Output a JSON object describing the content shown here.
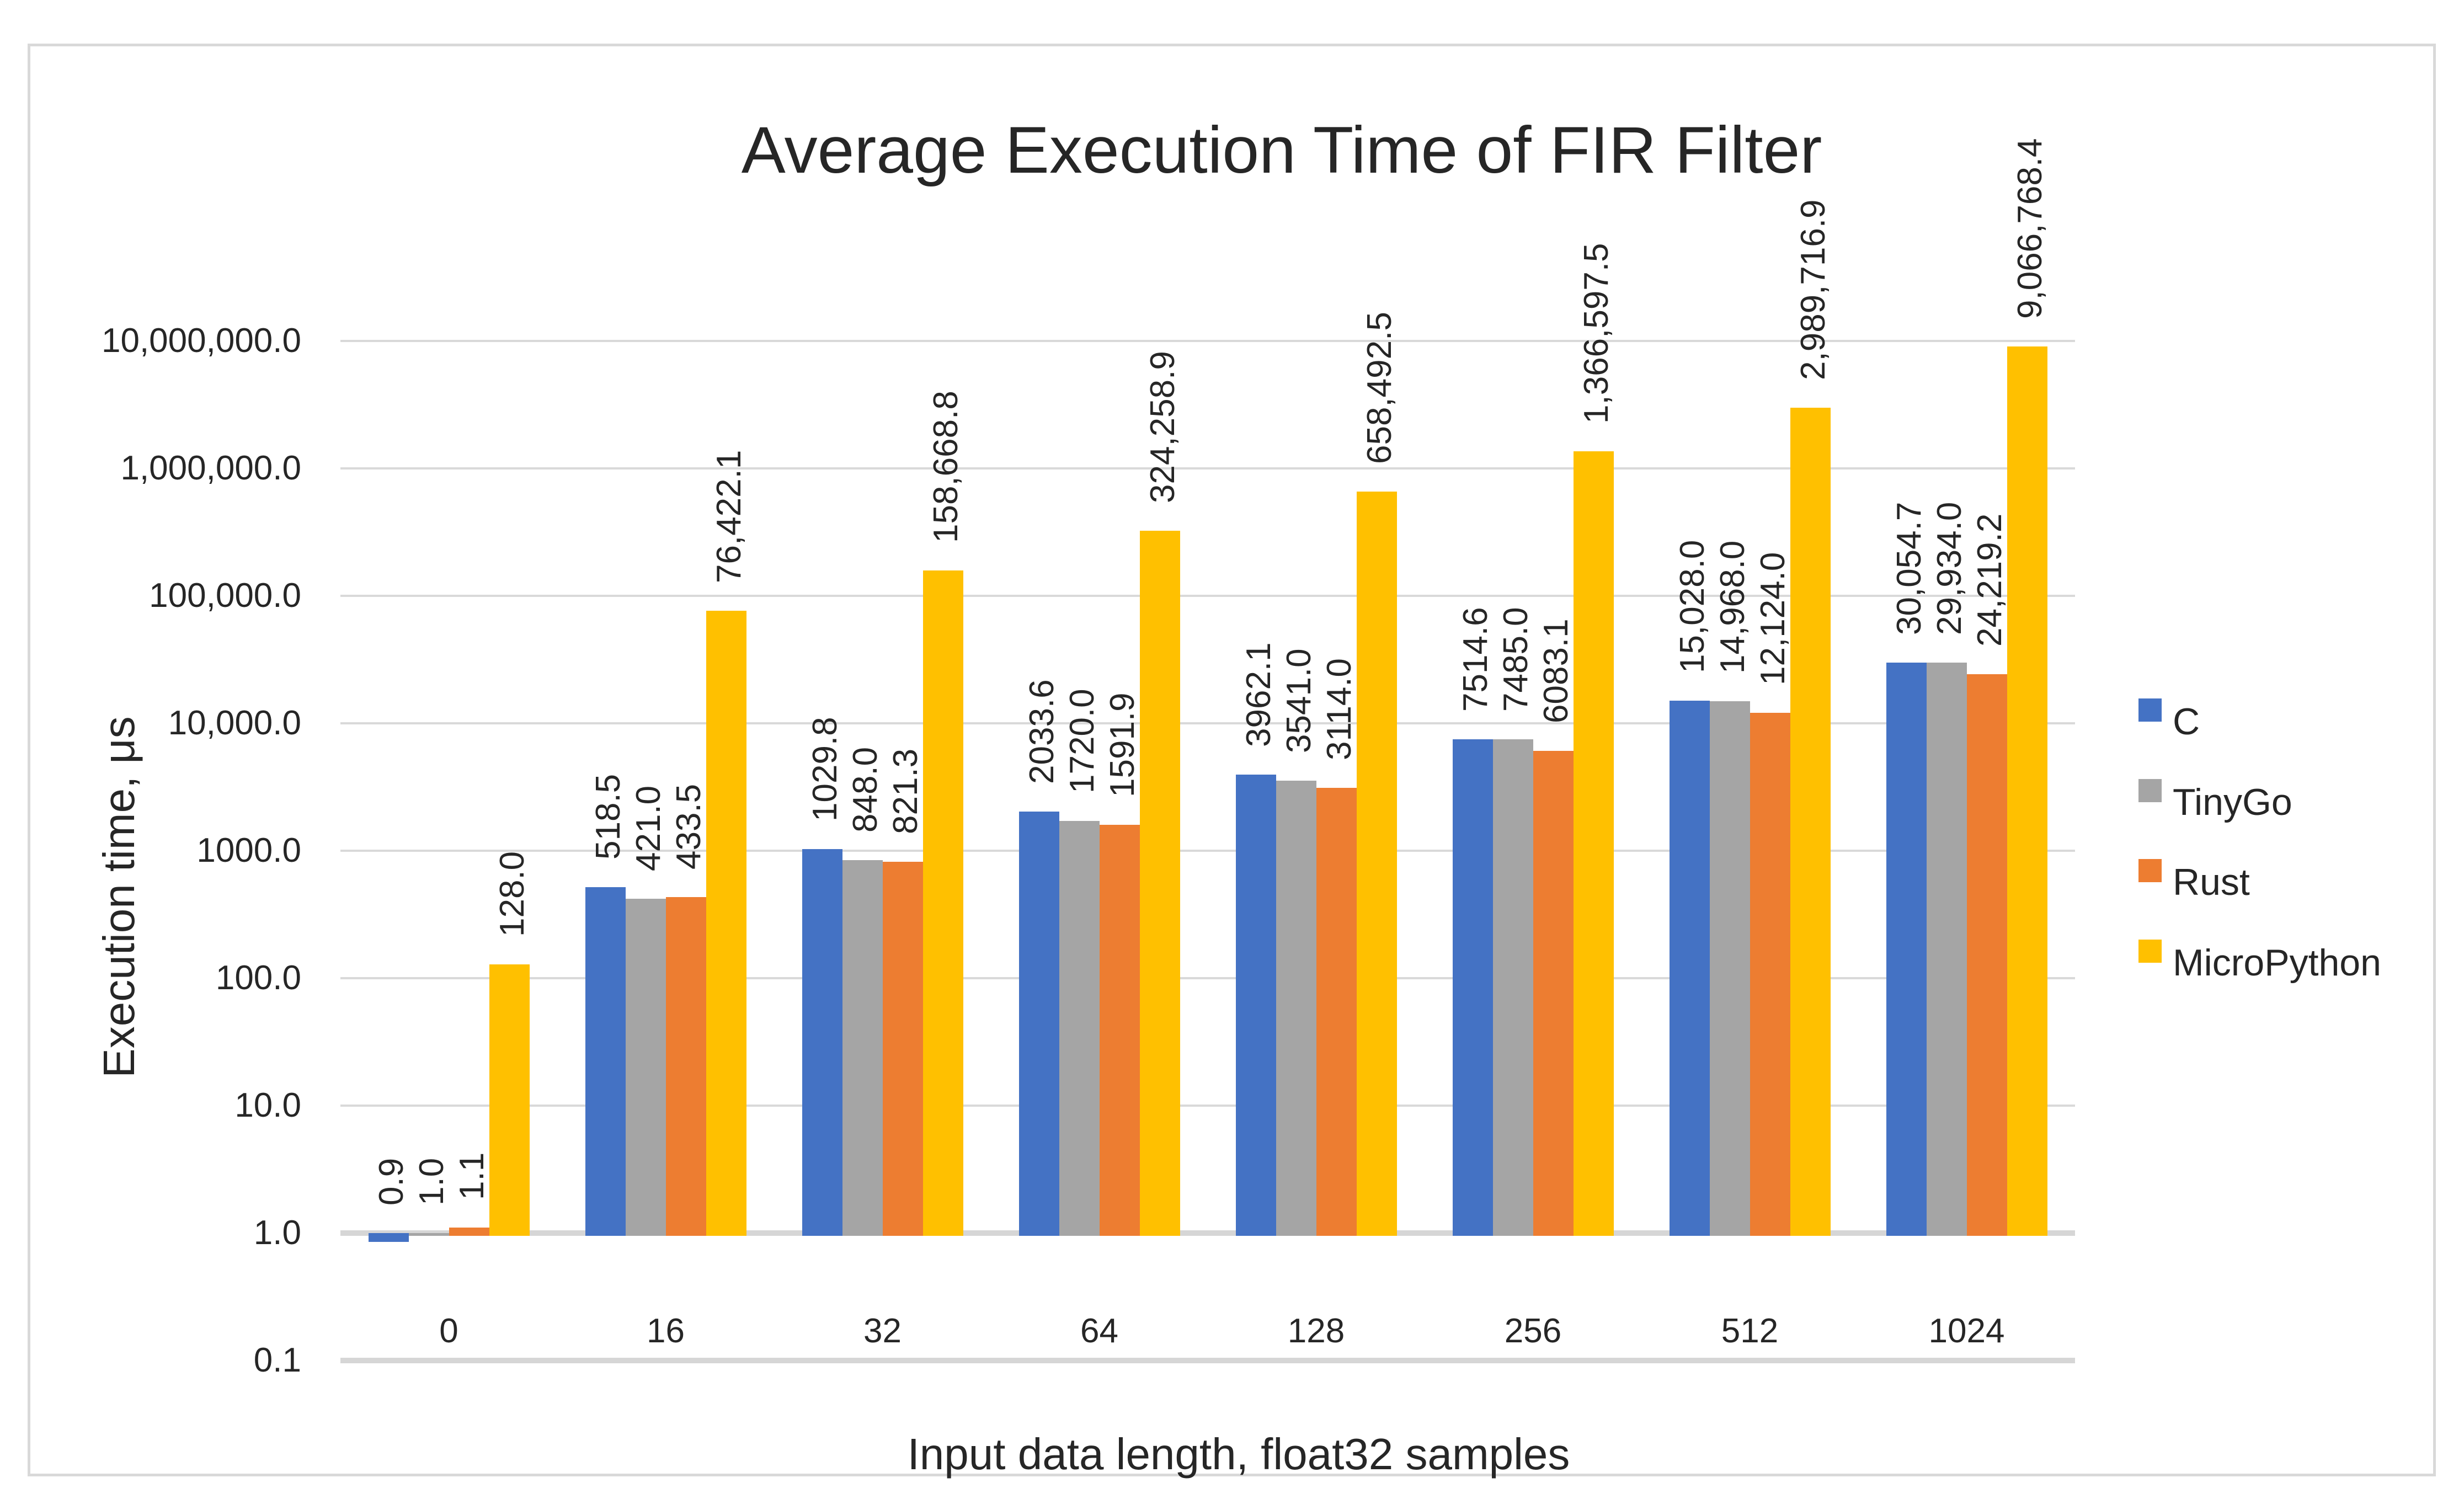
{
  "chart": {
    "title": "Average Execution Time of FIR Filter",
    "y_axis_title": "Execution time, μs",
    "x_axis_title": "Input data length, float32 samples"
  },
  "colors": {
    "series_c": "#4472C4",
    "series_tinygo": "#A5A5A5",
    "series_rust": "#ED7D31",
    "series_micropython": "#FFC000",
    "gridline": "#D9D9D9",
    "axis_line": "#D6D6D6",
    "frame_border": "#D9D9D9",
    "text": "#262626",
    "background": "#FFFFFF"
  },
  "chart_data": {
    "type": "bar",
    "title": "Average Execution Time of FIR Filter",
    "xlabel": "Input data length, float32 samples",
    "ylabel": "Execution time, μs",
    "y_scale": "log10",
    "ylim": [
      0.1,
      10000000
    ],
    "bar_baseline": 1.0,
    "grid": "horizontal",
    "legend_position": "right",
    "categories": [
      "0",
      "16",
      "32",
      "64",
      "128",
      "256",
      "512",
      "1024"
    ],
    "y_ticks": [
      {
        "label": "10,000,000.0",
        "value": 10000000
      },
      {
        "label": "1,000,000.0",
        "value": 1000000
      },
      {
        "label": "100,000.0",
        "value": 100000
      },
      {
        "label": "10,000.0",
        "value": 10000
      },
      {
        "label": "1000.0",
        "value": 1000
      },
      {
        "label": "100.0",
        "value": 100
      },
      {
        "label": "10.0",
        "value": 10
      },
      {
        "label": "1.0",
        "value": 1
      },
      {
        "label": "0.1",
        "value": 0.1
      }
    ],
    "series": [
      {
        "name": "C",
        "color": "#4472C4",
        "values": [
          0.9,
          518.5,
          1029.8,
          2033.6,
          3962.1,
          7514.6,
          15028.0,
          30054.7
        ],
        "labels": [
          "0.9",
          "518.5",
          "1029.8",
          "2033.6",
          "3962.1",
          "7514.6",
          "15,028.0",
          "30,054.7"
        ]
      },
      {
        "name": "TinyGo",
        "color": "#A5A5A5",
        "values": [
          1.0,
          421.0,
          848.0,
          1720.0,
          3541.0,
          7485.0,
          14968.0,
          29934.0
        ],
        "labels": [
          "1.0",
          "421.0",
          "848.0",
          "1720.0",
          "3541.0",
          "7485.0",
          "14,968.0",
          "29,934.0"
        ]
      },
      {
        "name": "Rust",
        "color": "#ED7D31",
        "values": [
          1.1,
          433.5,
          821.3,
          1591.9,
          3114.0,
          6083.1,
          12124.0,
          24219.2
        ],
        "labels": [
          "1.1",
          "433.5",
          "821.3",
          "1591.9",
          "3114.0",
          "6083.1",
          "12,124.0",
          "24,219.2"
        ]
      },
      {
        "name": "MicroPython",
        "color": "#FFC000",
        "values": [
          128.0,
          76422.1,
          158668.8,
          324258.9,
          658492.5,
          1366597.5,
          2989716.9,
          9066768.4
        ],
        "labels": [
          "128.0",
          "76,422.1",
          "158,668.8",
          "324,258.9",
          "658,492.5",
          "1,366,597.5",
          "2,989,716.9",
          "9,066,768.4"
        ]
      }
    ]
  }
}
